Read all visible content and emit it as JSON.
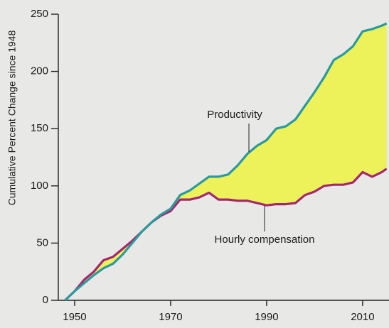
{
  "chart_data": {
    "type": "line",
    "ylabel": "Cumulative Percent Change since 1948",
    "x": [
      1948,
      1950,
      1952,
      1954,
      1956,
      1958,
      1960,
      1962,
      1964,
      1966,
      1968,
      1970,
      1972,
      1974,
      1976,
      1978,
      1980,
      1982,
      1984,
      1986,
      1988,
      1990,
      1992,
      1994,
      1996,
      1998,
      2000,
      2002,
      2004,
      2006,
      2008,
      2010,
      2012,
      2014,
      2015
    ],
    "series": [
      {
        "name": "Productivity",
        "color": "#2a9a9c",
        "values": [
          0,
          8,
          15,
          22,
          28,
          32,
          40,
          50,
          60,
          68,
          75,
          80,
          92,
          96,
          102,
          108,
          108,
          110,
          118,
          128,
          135,
          140,
          150,
          152,
          158,
          170,
          182,
          195,
          210,
          215,
          222,
          235,
          237,
          240,
          242
        ]
      },
      {
        "name": "Hourly compensation",
        "color": "#a3276f",
        "values": [
          0,
          8,
          18,
          25,
          35,
          38,
          45,
          52,
          60,
          68,
          74,
          78,
          88,
          88,
          90,
          94,
          88,
          88,
          87,
          87,
          85,
          83,
          84,
          84,
          85,
          92,
          95,
          100,
          101,
          101,
          103,
          112,
          108,
          112,
          115
        ]
      }
    ],
    "fill_between_color": "#eef25a",
    "annotations": [
      {
        "text": "Productivity"
      },
      {
        "text": "Hourly compensation"
      }
    ],
    "xlim": [
      1946.6,
      2015.5
    ],
    "ylim": [
      0,
      250
    ],
    "xticks": [
      1950,
      1970,
      1990,
      2010
    ],
    "yticks": [
      0,
      50,
      100,
      150,
      200,
      250
    ]
  }
}
